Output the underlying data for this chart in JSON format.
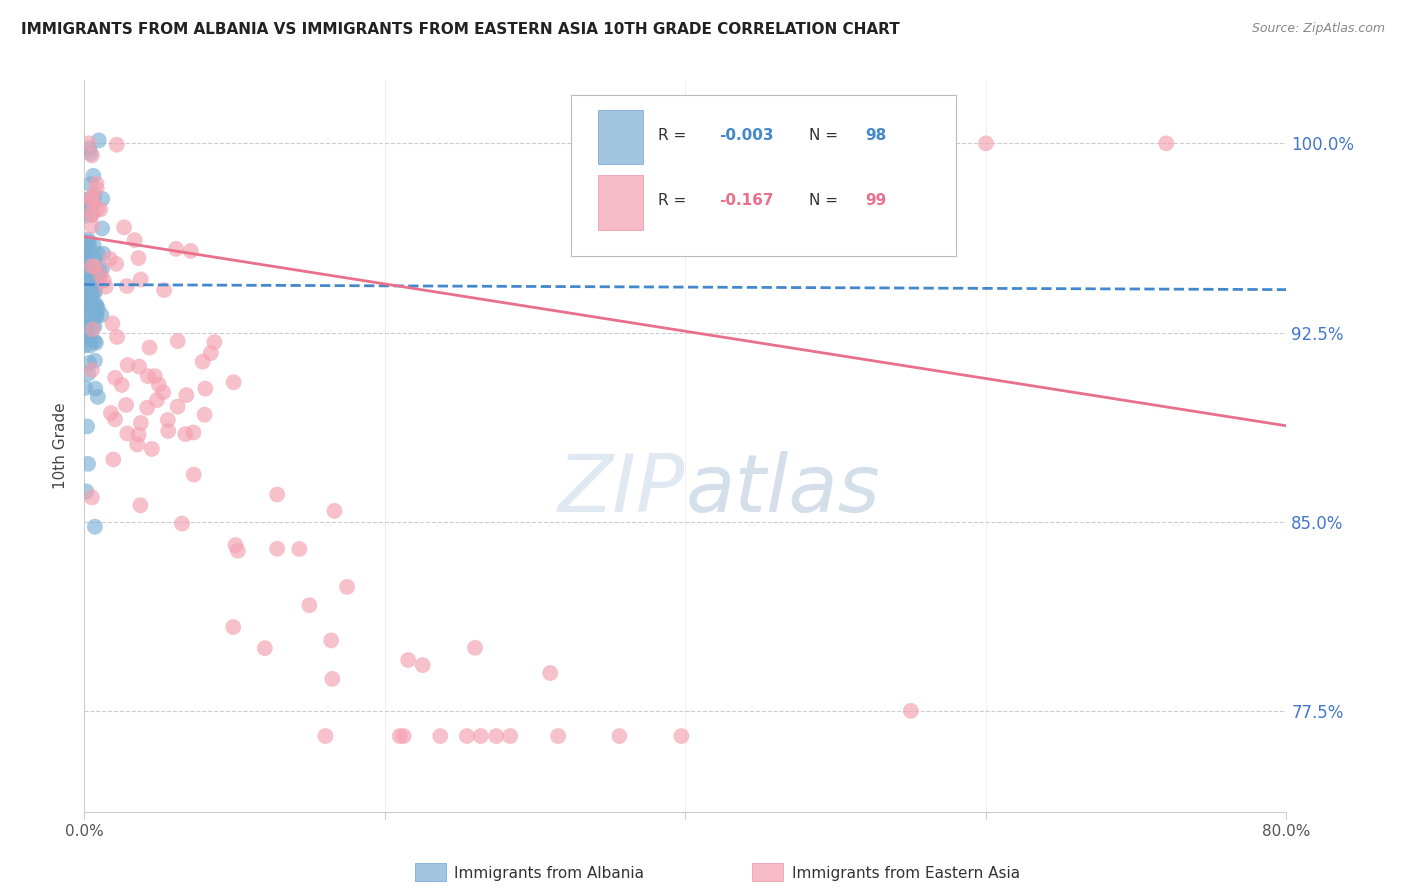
{
  "title": "IMMIGRANTS FROM ALBANIA VS IMMIGRANTS FROM EASTERN ASIA 10TH GRADE CORRELATION CHART",
  "source": "Source: ZipAtlas.com",
  "ylabel": "10th Grade",
  "ytick_labels": [
    "100.0%",
    "92.5%",
    "85.0%",
    "77.5%"
  ],
  "ytick_values": [
    1.0,
    0.925,
    0.85,
    0.775
  ],
  "xmin": 0.0,
  "xmax": 0.8,
  "ymin": 0.735,
  "ymax": 1.025,
  "albania_color": "#7BAFD4",
  "eastern_asia_color": "#F4A0B0",
  "albania_line_color": "#4488CC",
  "eastern_asia_line_color": "#E8708A",
  "albania_R": -0.003,
  "albania_N": 98,
  "eastern_asia_R": -0.167,
  "eastern_asia_N": 99,
  "legend_label_albania": "Immigrants from Albania",
  "legend_label_eastern_asia": "Immigrants from Eastern Asia",
  "albania_trend_y0": 0.944,
  "albania_trend_y1": 0.942,
  "eastern_trend_y0": 0.963,
  "eastern_trend_y1": 0.888,
  "watermark_color": "#D0DCEE",
  "ytick_color": "#4477CC",
  "grid_color": "#CCCCCC"
}
